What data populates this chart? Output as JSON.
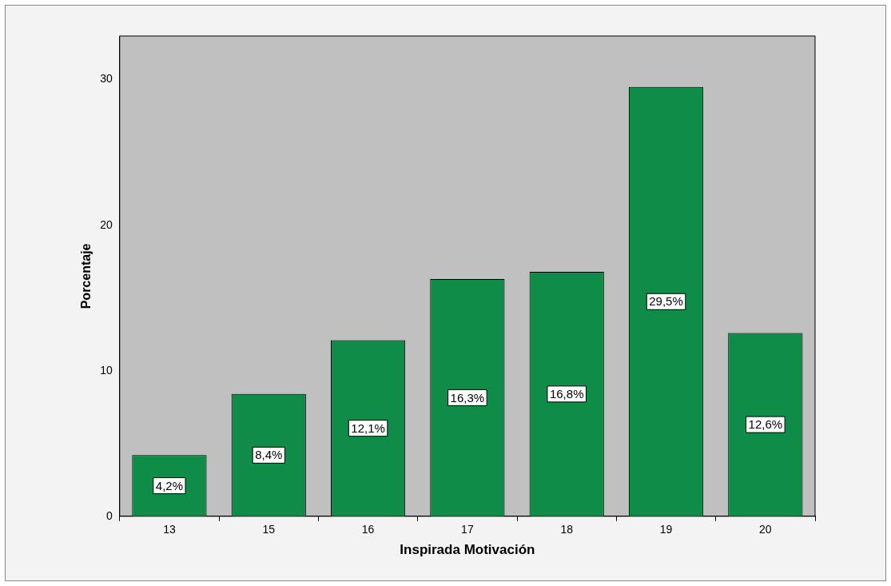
{
  "chart_data": {
    "type": "bar",
    "xlabel": "Inspirada Motivación",
    "ylabel": "Porcentaje",
    "categories": [
      "13",
      "15",
      "16",
      "17",
      "18",
      "19",
      "20"
    ],
    "values": [
      4.2,
      8.4,
      12.1,
      16.3,
      16.8,
      29.5,
      12.6
    ],
    "value_labels": [
      "4,2%",
      "8,4%",
      "12,1%",
      "16,3%",
      "16,8%",
      "29,5%",
      "12,6%"
    ],
    "color": "#0f8c48",
    "ylim": [
      0,
      33
    ],
    "yticks": [
      0,
      10,
      20,
      30
    ],
    "grid": false,
    "legend": false
  }
}
